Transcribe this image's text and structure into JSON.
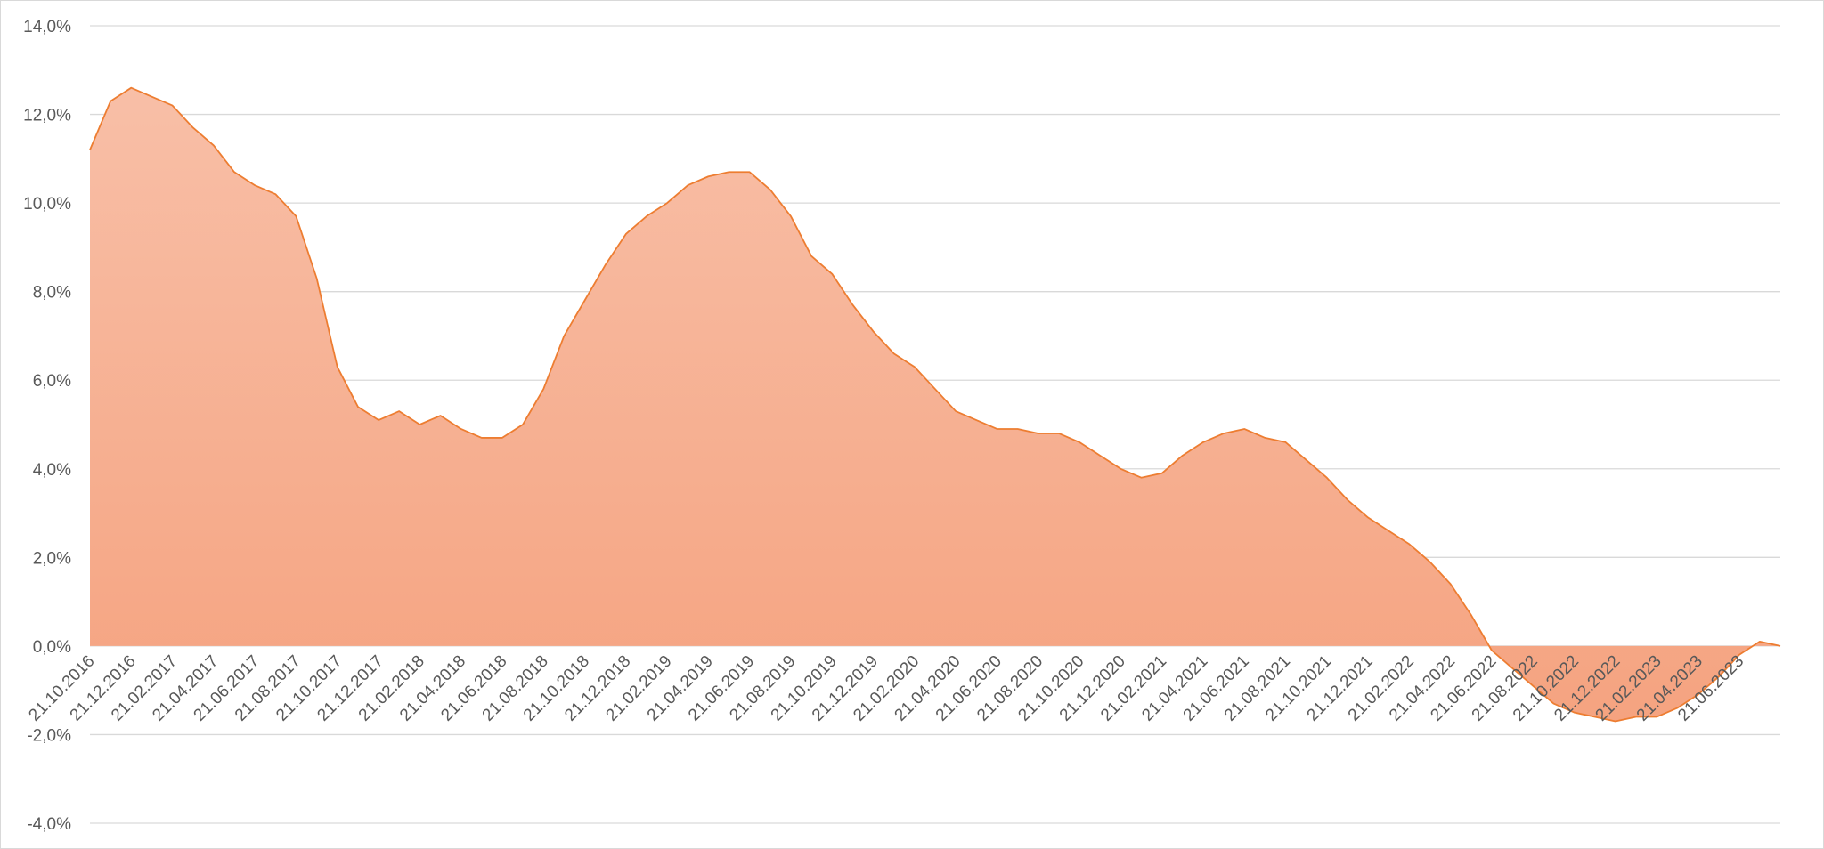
{
  "chart_data": {
    "type": "area",
    "title": "",
    "xlabel": "",
    "ylabel": "",
    "ylim": [
      -4,
      14
    ],
    "ytick_values": [
      -4,
      -2,
      0,
      2,
      4,
      6,
      8,
      10,
      12,
      14
    ],
    "ytick_labels": [
      "-4,0%",
      "-2,0%",
      "0,0%",
      "2,0%",
      "4,0%",
      "6,0%",
      "8,0%",
      "10,0%",
      "12,0%",
      "14,0%"
    ],
    "grid": true,
    "legend": "none",
    "colors": {
      "fill_top": "#f8bfa7",
      "fill_bottom": "#f5a380",
      "line": "#ed7d31",
      "grid": "#d9d9d9",
      "text": "#595959"
    },
    "x": [
      "21.10.2016",
      "21.11.2016",
      "21.12.2016",
      "21.01.2017",
      "21.02.2017",
      "21.03.2017",
      "21.04.2017",
      "21.05.2017",
      "21.06.2017",
      "21.07.2017",
      "21.08.2017",
      "21.09.2017",
      "21.10.2017",
      "21.11.2017",
      "21.12.2017",
      "21.01.2018",
      "21.02.2018",
      "21.03.2018",
      "21.04.2018",
      "21.05.2018",
      "21.06.2018",
      "21.07.2018",
      "21.08.2018",
      "21.09.2018",
      "21.10.2018",
      "21.11.2018",
      "21.12.2018",
      "21.01.2019",
      "21.02.2019",
      "21.03.2019",
      "21.04.2019",
      "21.05.2019",
      "21.06.2019",
      "21.07.2019",
      "21.08.2019",
      "21.09.2019",
      "21.10.2019",
      "21.11.2019",
      "21.12.2019",
      "21.01.2020",
      "21.02.2020",
      "21.03.2020",
      "21.04.2020",
      "21.05.2020",
      "21.06.2020",
      "21.07.2020",
      "21.08.2020",
      "21.09.2020",
      "21.10.2020",
      "21.11.2020",
      "21.12.2020",
      "21.01.2021",
      "21.02.2021",
      "21.03.2021",
      "21.04.2021",
      "21.05.2021",
      "21.06.2021",
      "21.07.2021",
      "21.08.2021",
      "21.09.2021",
      "21.10.2021",
      "21.11.2021",
      "21.12.2021",
      "21.01.2022",
      "21.02.2022",
      "21.03.2022",
      "21.04.2022",
      "21.05.2022",
      "21.06.2022",
      "21.07.2022",
      "21.08.2022",
      "21.09.2022",
      "21.10.2022",
      "21.11.2022",
      "21.12.2022",
      "21.01.2023",
      "21.02.2023",
      "21.03.2023",
      "21.04.2023",
      "21.05.2023",
      "21.06.2023",
      "21.07.2023",
      "21.08.2023"
    ],
    "values": [
      11.2,
      12.3,
      12.6,
      12.4,
      12.2,
      11.7,
      11.3,
      10.7,
      10.4,
      10.2,
      9.7,
      8.3,
      6.3,
      5.4,
      5.1,
      5.3,
      5.0,
      5.2,
      4.9,
      4.7,
      4.7,
      5.0,
      5.8,
      7.0,
      7.8,
      8.6,
      9.3,
      9.7,
      10.0,
      10.4,
      10.6,
      10.7,
      10.7,
      10.3,
      9.7,
      8.8,
      8.4,
      7.7,
      7.1,
      6.6,
      6.3,
      5.8,
      5.3,
      5.1,
      4.9,
      4.9,
      4.8,
      4.8,
      4.6,
      4.3,
      4.0,
      3.8,
      3.9,
      4.3,
      4.6,
      4.8,
      4.9,
      4.7,
      4.6,
      4.2,
      3.8,
      3.3,
      2.9,
      2.6,
      2.3,
      1.9,
      1.4,
      0.7,
      -0.1,
      -0.5,
      -0.9,
      -1.3,
      -1.5,
      -1.6,
      -1.7,
      -1.6,
      -1.6,
      -1.4,
      -1.1,
      -0.7,
      -0.2,
      0.1,
      0.0
    ],
    "x_tick_labels": [
      "21.10.2016",
      "21.12.2016",
      "21.02.2017",
      "21.04.2017",
      "21.06.2017",
      "21.08.2017",
      "21.10.2017",
      "21.12.2017",
      "21.02.2018",
      "21.04.2018",
      "21.06.2018",
      "21.08.2018",
      "21.10.2018",
      "21.12.2018",
      "21.02.2019",
      "21.04.2019",
      "21.06.2019",
      "21.08.2019",
      "21.10.2019",
      "21.12.2019",
      "21.02.2020",
      "21.04.2020",
      "21.06.2020",
      "21.08.2020",
      "21.10.2020",
      "21.12.2020",
      "21.02.2021",
      "21.04.2021",
      "21.06.2021",
      "21.08.2021",
      "21.10.2021",
      "21.12.2021",
      "21.02.2022",
      "21.04.2022",
      "21.06.2022",
      "21.08.2022",
      "21.10.2022",
      "21.12.2022",
      "21.02.2023",
      "21.04.2023",
      "21.06.2023"
    ]
  }
}
